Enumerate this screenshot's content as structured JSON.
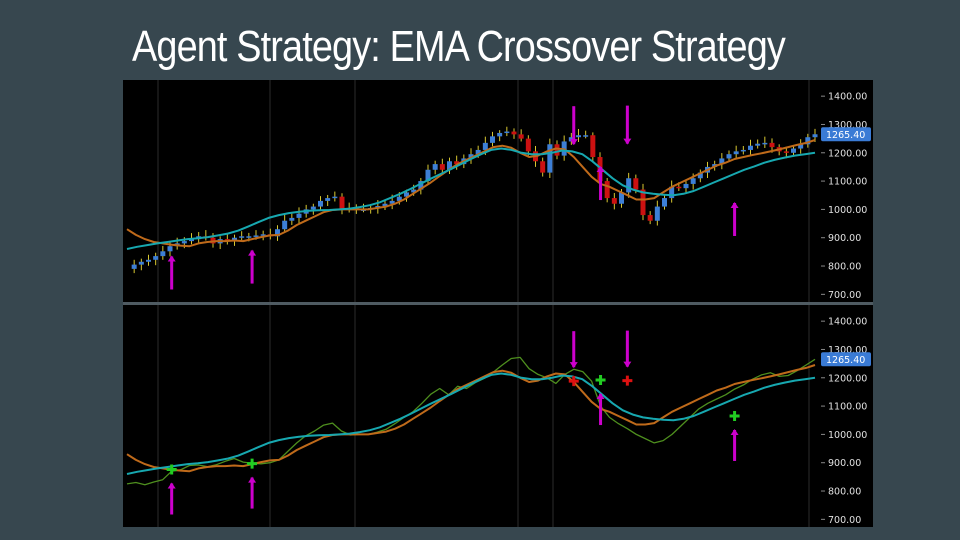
{
  "title": "Agent Strategy: EMA Crossover Strategy",
  "colors": {
    "background": "#37474f",
    "chart_bg": "#000000",
    "bull_candle": "#3d7fd6",
    "bear_candle": "#cc1111",
    "wick": "#d8c830",
    "fast_ema": "#bf6a1a",
    "slow_ema": "#17a8b0",
    "price_line": "#4e8f1e",
    "arrow": "#cc00cc",
    "buy_marker": "#22cc22",
    "sell_marker": "#dd1111",
    "price_tag": "#3a7bd5"
  },
  "chart_data": [
    {
      "type": "candlestick",
      "ylim": [
        680,
        1450
      ],
      "y_ticks": [
        "1400.00",
        "1300.00",
        "1200.00",
        "1100.00",
        "1000.00",
        "900.00",
        "800.00",
        "700.00"
      ],
      "y_tick_values": [
        1400,
        1300,
        1200,
        1100,
        1000,
        900,
        800,
        700
      ],
      "last_price_label": "1265.40",
      "last_price": 1265.4,
      "grid": "vertical",
      "closes": [
        790,
        805,
        815,
        822,
        835,
        852,
        870,
        880,
        888,
        895,
        905,
        900,
        880,
        895,
        890,
        900,
        905,
        905,
        908,
        912,
        905,
        930,
        960,
        970,
        985,
        1000,
        1010,
        1030,
        1040,
        1045,
        1000,
        1005,
        1000,
        1000,
        1005,
        1012,
        1020,
        1030,
        1045,
        1060,
        1070,
        1100,
        1140,
        1160,
        1140,
        1170,
        1160,
        1180,
        1195,
        1210,
        1235,
        1258,
        1270,
        1275,
        1265,
        1250,
        1205,
        1170,
        1130,
        1230,
        1190,
        1240,
        1255,
        1262,
        1262,
        1185,
        1100,
        1040,
        1020,
        1060,
        1110,
        1070,
        980,
        960,
        1010,
        1040,
        1080,
        1075,
        1090,
        1110,
        1130,
        1150,
        1160,
        1180,
        1195,
        1205,
        1210,
        1225,
        1232,
        1235,
        1220,
        1205,
        1200,
        1215,
        1230,
        1255,
        1265.4
      ],
      "fast_ema": [
        930,
        910,
        895,
        885,
        880,
        875,
        872,
        870,
        880,
        885,
        888,
        888,
        890,
        888,
        895,
        902,
        908,
        910,
        925,
        945,
        960,
        975,
        990,
        998,
        1000,
        1000,
        1000,
        1000,
        1005,
        1010,
        1020,
        1035,
        1055,
        1075,
        1095,
        1118,
        1140,
        1160,
        1175,
        1190,
        1205,
        1220,
        1225,
        1218,
        1200,
        1185,
        1190,
        1205,
        1215,
        1212,
        1185,
        1150,
        1115,
        1090,
        1080,
        1065,
        1050,
        1035,
        1035,
        1040,
        1060,
        1080,
        1095,
        1110,
        1125,
        1140,
        1155,
        1165,
        1178,
        1185,
        1192,
        1198,
        1205,
        1212,
        1220,
        1228,
        1235,
        1245
      ],
      "slow_ema": [
        860,
        868,
        874,
        880,
        885,
        890,
        895,
        898,
        902,
        908,
        915,
        925,
        940,
        955,
        970,
        980,
        987,
        992,
        995,
        997,
        998,
        1000,
        1003,
        1008,
        1015,
        1025,
        1040,
        1055,
        1072,
        1090,
        1108,
        1125,
        1142,
        1160,
        1178,
        1195,
        1210,
        1215,
        1210,
        1200,
        1195,
        1195,
        1200,
        1208,
        1205,
        1195,
        1170,
        1140,
        1110,
        1085,
        1070,
        1060,
        1055,
        1052,
        1050,
        1055,
        1065,
        1080,
        1095,
        1110,
        1125,
        1140,
        1152,
        1165,
        1175,
        1183,
        1190,
        1195,
        1200
      ]
    },
    {
      "type": "line",
      "ylim": [
        680,
        1450
      ],
      "y_ticks": [
        "1400.00",
        "1300.00",
        "1200.00",
        "1100.00",
        "1000.00",
        "900.00",
        "800.00",
        "700.00"
      ],
      "y_tick_values": [
        1400,
        1300,
        1200,
        1100,
        1000,
        900,
        800,
        700
      ],
      "last_price_label": "1265.40",
      "last_price": 1265.4,
      "grid": "vertical",
      "series": [
        {
          "values": [
            825,
            830,
            822,
            832,
            840,
            870,
            875,
            890,
            892,
            886,
            893,
            905,
            915,
            902,
            898,
            896,
            900,
            910,
            940,
            970,
            995,
            1012,
            1033,
            1040,
            1012,
            998,
            1000,
            1000,
            1008,
            1018,
            1038,
            1060,
            1080,
            1110,
            1142,
            1162,
            1140,
            1170,
            1162,
            1183,
            1198,
            1220,
            1245,
            1268,
            1272,
            1232,
            1212,
            1200,
            1180,
            1212,
            1230,
            1222,
            1188,
            1100,
            1060,
            1038,
            1020,
            1000,
            985,
            970,
            978,
            1000,
            1030,
            1060,
            1090,
            1110,
            1125,
            1140,
            1160,
            1175,
            1195,
            1210,
            1218,
            1205,
            1208,
            1225,
            1245,
            1265.4
          ]
        },
        {
          "values": [
            930,
            910,
            895,
            885,
            880,
            875,
            872,
            870,
            880,
            885,
            888,
            888,
            890,
            888,
            895,
            902,
            908,
            910,
            925,
            945,
            960,
            975,
            990,
            998,
            1000,
            1000,
            1000,
            1000,
            1005,
            1010,
            1020,
            1035,
            1055,
            1075,
            1095,
            1118,
            1140,
            1160,
            1175,
            1190,
            1205,
            1220,
            1225,
            1218,
            1200,
            1185,
            1190,
            1205,
            1215,
            1212,
            1185,
            1150,
            1115,
            1090,
            1080,
            1065,
            1050,
            1035,
            1035,
            1040,
            1060,
            1080,
            1095,
            1110,
            1125,
            1140,
            1155,
            1165,
            1178,
            1185,
            1192,
            1198,
            1205,
            1212,
            1220,
            1228,
            1235,
            1245
          ]
        },
        {
          "values": [
            860,
            868,
            874,
            880,
            885,
            890,
            895,
            898,
            902,
            908,
            915,
            925,
            940,
            955,
            970,
            980,
            987,
            992,
            995,
            997,
            998,
            1000,
            1003,
            1008,
            1015,
            1025,
            1040,
            1055,
            1072,
            1090,
            1108,
            1125,
            1142,
            1160,
            1178,
            1195,
            1210,
            1215,
            1210,
            1200,
            1195,
            1195,
            1200,
            1208,
            1205,
            1195,
            1170,
            1140,
            1110,
            1085,
            1070,
            1060,
            1055,
            1052,
            1050,
            1055,
            1065,
            1080,
            1095,
            1110,
            1125,
            1140,
            1152,
            1165,
            1175,
            1183,
            1190,
            1195,
            1200
          ]
        }
      ],
      "signals": [
        {
          "kind": "buy",
          "index": 5,
          "price": 876
        },
        {
          "kind": "buy",
          "index": 14,
          "price": 897
        },
        {
          "kind": "sell",
          "index": 50,
          "price": 1188
        },
        {
          "kind": "buy",
          "index": 53,
          "price": 1192
        },
        {
          "kind": "sell",
          "index": 56,
          "price": 1190
        },
        {
          "kind": "buy",
          "index": 68,
          "price": 1065
        }
      ]
    }
  ]
}
